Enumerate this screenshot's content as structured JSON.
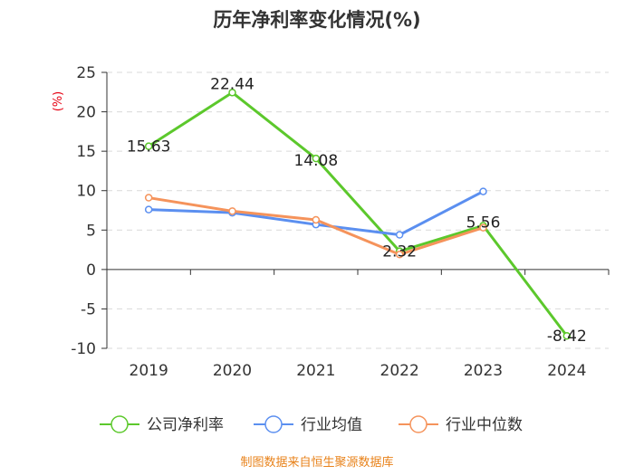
{
  "chart_data": {
    "type": "line",
    "title": "历年净利率变化情况(%)",
    "ylabel": "(%)",
    "xlabel": "",
    "categories": [
      "2019",
      "2020",
      "2021",
      "2022",
      "2023",
      "2024"
    ],
    "ylim": [
      -10,
      25
    ],
    "yticks": [
      25,
      20,
      15,
      10,
      5,
      0,
      -5,
      -10
    ],
    "grid": true,
    "legend_position": "bottom",
    "series": [
      {
        "name": "公司净利率",
        "color": "#5cc82c",
        "values": [
          15.63,
          22.44,
          14.08,
          2.32,
          5.56,
          -8.42
        ],
        "labels": [
          "15.63",
          "22.44",
          "14.08",
          "2.32",
          "5.56",
          "-8.42"
        ]
      },
      {
        "name": "行业均值",
        "color": "#5b8ff0",
        "values": [
          7.6,
          7.2,
          5.7,
          4.4,
          9.9,
          null
        ]
      },
      {
        "name": "行业中位数",
        "color": "#f5935b",
        "values": [
          9.1,
          7.4,
          6.3,
          1.9,
          5.3,
          null
        ]
      }
    ],
    "source": "制图数据来自恒生聚源数据库"
  }
}
